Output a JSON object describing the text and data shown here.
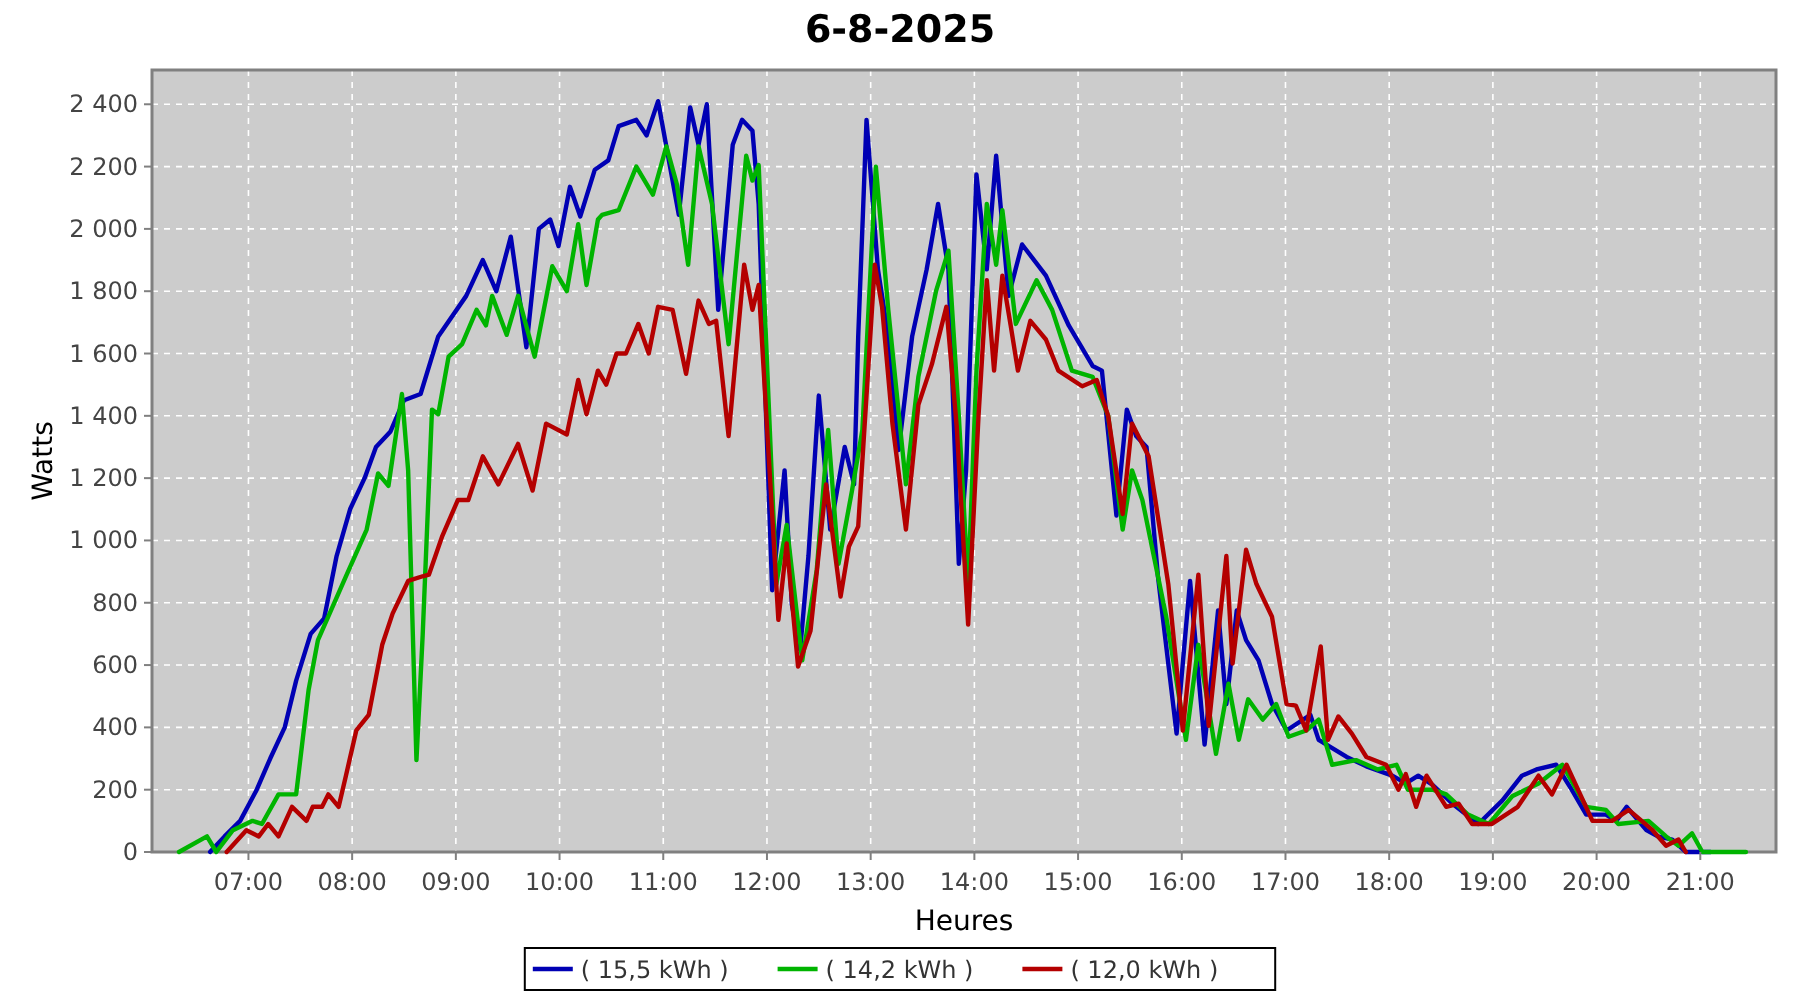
{
  "chart_data": {
    "type": "line",
    "title": "6-8-2025",
    "xlabel": "Heures",
    "ylabel": "Watts",
    "xlim": [
      6.07,
      21.73
    ],
    "xticks": [
      {
        "value": 7,
        "label": "07:00"
      },
      {
        "value": 8,
        "label": "08:00"
      },
      {
        "value": 9,
        "label": "09:00"
      },
      {
        "value": 10,
        "label": "10:00"
      },
      {
        "value": 11,
        "label": "11:00"
      },
      {
        "value": 12,
        "label": "12:00"
      },
      {
        "value": 13,
        "label": "13:00"
      },
      {
        "value": 14,
        "label": "14:00"
      },
      {
        "value": 15,
        "label": "15:00"
      },
      {
        "value": 16,
        "label": "16:00"
      },
      {
        "value": 17,
        "label": "17:00"
      },
      {
        "value": 18,
        "label": "18:00"
      },
      {
        "value": 19,
        "label": "19:00"
      },
      {
        "value": 20,
        "label": "20:00"
      },
      {
        "value": 21,
        "label": "21:00"
      }
    ],
    "ylim": [
      0,
      2510
    ],
    "yticks": [
      0,
      200,
      400,
      600,
      800,
      {
        "value": 1000,
        "label": "1 000"
      },
      {
        "value": 1200,
        "label": "1 200"
      },
      {
        "value": 1400,
        "label": "1 400"
      },
      {
        "value": 1600,
        "label": "1 600"
      },
      {
        "value": 1800,
        "label": "1 800"
      },
      {
        "value": 2000,
        "label": "2 000"
      },
      {
        "value": 2200,
        "label": "2 200"
      },
      {
        "value": 2400,
        "label": "2 400"
      }
    ],
    "grid": true,
    "legend": "bottom",
    "marker": "none",
    "line_style": "solid",
    "series": [
      {
        "name": "( 15,5 kWh )",
        "color": "#0000b4",
        "x": [
          6.63,
          6.77,
          6.92,
          7.08,
          7.21,
          7.35,
          7.46,
          7.6,
          7.73,
          7.85,
          7.98,
          8.12,
          8.23,
          8.37,
          8.5,
          8.66,
          8.83,
          9.1,
          9.26,
          9.39,
          9.53,
          9.68,
          9.8,
          9.91,
          9.99,
          10.1,
          10.2,
          10.34,
          10.47,
          10.57,
          10.74,
          10.84,
          10.95,
          11.15,
          11.26,
          11.34,
          11.42,
          11.53,
          11.67,
          11.76,
          11.86,
          11.92,
          12.05,
          12.17,
          12.24,
          12.32,
          12.4,
          12.5,
          12.61,
          12.75,
          12.84,
          12.88,
          12.96,
          13.07,
          13.17,
          13.27,
          13.4,
          13.54,
          13.65,
          13.75,
          13.85,
          13.92,
          14.02,
          14.12,
          14.21,
          14.33,
          14.46,
          14.69,
          14.91,
          15.14,
          15.23,
          15.37,
          15.47,
          15.56,
          15.66,
          15.77,
          15.95,
          16.08,
          16.22,
          16.35,
          16.43,
          16.53,
          16.62,
          16.74,
          16.87,
          17.01,
          17.24,
          17.32,
          17.59,
          17.78,
          18.03,
          18.16,
          18.28,
          18.42,
          18.61,
          18.86,
          19.09,
          19.28,
          19.42,
          19.61,
          19.76,
          19.9,
          20.09,
          20.19,
          20.29,
          20.48,
          20.59,
          20.73,
          20.86,
          21.1
        ],
        "values": [
          0,
          50,
          100,
          200,
          300,
          400,
          550,
          700,
          750,
          950,
          1100,
          1200,
          1300,
          1350,
          1450,
          1470,
          1655,
          1785,
          1900,
          1800,
          1975,
          1620,
          2000,
          2030,
          1945,
          2135,
          2040,
          2190,
          2220,
          2330,
          2350,
          2300,
          2410,
          2045,
          2390,
          2270,
          2400,
          1740,
          2270,
          2350,
          2315,
          2080,
          840,
          1225,
          795,
          650,
          950,
          1465,
          1035,
          1300,
          1180,
          1655,
          2350,
          1870,
          1655,
          1290,
          1655,
          1870,
          2080,
          1870,
          925,
          1225,
          2175,
          1870,
          2235,
          1785,
          1950,
          1850,
          1690,
          1560,
          1545,
          1080,
          1420,
          1335,
          1300,
          885,
          380,
          870,
          345,
          775,
          475,
          775,
          680,
          615,
          475,
          390,
          440,
          360,
          305,
          275,
          245,
          220,
          245,
          215,
          155,
          90,
          165,
          245,
          265,
          280,
          200,
          120,
          120,
          100,
          145,
          70,
          50,
          40,
          0,
          0
        ]
      },
      {
        "name": "( 14,2 kWh )",
        "color": "#00b400",
        "x": [
          6.33,
          6.6,
          6.69,
          6.85,
          7.04,
          7.13,
          7.29,
          7.46,
          7.58,
          7.67,
          7.94,
          8.14,
          8.25,
          8.35,
          8.48,
          8.54,
          8.62,
          8.68,
          8.77,
          8.83,
          8.93,
          9.06,
          9.2,
          9.29,
          9.35,
          9.49,
          9.6,
          9.76,
          9.93,
          10.07,
          10.18,
          10.26,
          10.37,
          10.41,
          10.57,
          10.74,
          10.9,
          11.03,
          11.13,
          11.24,
          11.34,
          11.47,
          11.63,
          11.8,
          11.86,
          11.92,
          12.09,
          12.19,
          12.34,
          12.48,
          12.59,
          12.69,
          12.82,
          12.92,
          13.05,
          13.17,
          13.34,
          13.46,
          13.63,
          13.75,
          13.85,
          13.94,
          14.02,
          14.12,
          14.21,
          14.27,
          14.4,
          14.6,
          14.75,
          14.94,
          15.14,
          15.29,
          15.43,
          15.52,
          15.62,
          15.85,
          16.04,
          16.16,
          16.33,
          16.45,
          16.55,
          16.64,
          16.78,
          16.91,
          17.03,
          17.2,
          17.32,
          17.45,
          17.68,
          17.89,
          18.07,
          18.18,
          18.42,
          18.55,
          18.76,
          18.96,
          19.19,
          19.44,
          19.67,
          19.9,
          20.09,
          20.21,
          20.5,
          20.67,
          20.79,
          20.92,
          21.02,
          21.44
        ],
        "values": [
          0,
          50,
          0,
          70,
          100,
          90,
          185,
          185,
          520,
          680,
          885,
          1035,
          1215,
          1175,
          1470,
          1225,
          295,
          695,
          1420,
          1405,
          1590,
          1630,
          1740,
          1690,
          1785,
          1660,
          1785,
          1590,
          1880,
          1800,
          2015,
          1820,
          2030,
          2045,
          2060,
          2200,
          2110,
          2265,
          2145,
          1885,
          2265,
          2080,
          1630,
          2235,
          2155,
          2205,
          860,
          1050,
          615,
          905,
          1355,
          925,
          1160,
          1355,
          2200,
          1740,
          1180,
          1525,
          1800,
          1930,
          1400,
          855,
          1545,
          2080,
          1885,
          2060,
          1695,
          1835,
          1740,
          1545,
          1525,
          1400,
          1035,
          1225,
          1130,
          755,
          360,
          665,
          315,
          540,
          360,
          490,
          425,
          475,
          370,
          390,
          425,
          280,
          295,
          265,
          280,
          200,
          200,
          185,
          120,
          90,
          180,
          220,
          280,
          145,
          135,
          90,
          100,
          50,
          20,
          60,
          0,
          0
        ]
      },
      {
        "name": "( 12,0 kWh )",
        "color": "#b40000",
        "x": [
          6.79,
          6.98,
          7.1,
          7.19,
          7.29,
          7.42,
          7.56,
          7.62,
          7.71,
          7.77,
          7.87,
          7.94,
          8.04,
          8.16,
          8.29,
          8.39,
          8.54,
          8.68,
          8.74,
          8.87,
          9.02,
          9.12,
          9.26,
          9.41,
          9.6,
          9.74,
          9.87,
          10.07,
          10.18,
          10.26,
          10.37,
          10.45,
          10.55,
          10.64,
          10.76,
          10.86,
          10.95,
          11.09,
          11.22,
          11.34,
          11.44,
          11.51,
          11.63,
          11.78,
          11.86,
          11.92,
          12.01,
          12.11,
          12.19,
          12.3,
          12.42,
          12.57,
          12.71,
          12.79,
          12.88,
          13.04,
          13.11,
          13.21,
          13.34,
          13.46,
          13.59,
          13.73,
          13.83,
          13.94,
          14.04,
          14.12,
          14.19,
          14.27,
          14.35,
          14.42,
          14.54,
          14.69,
          14.81,
          15.04,
          15.18,
          15.29,
          15.43,
          15.52,
          15.68,
          15.87,
          16.01,
          16.16,
          16.26,
          16.43,
          16.49,
          16.62,
          16.72,
          16.87,
          17.01,
          17.1,
          17.2,
          17.34,
          17.41,
          17.51,
          17.64,
          17.78,
          17.97,
          18.09,
          18.16,
          18.26,
          18.36,
          18.55,
          18.67,
          18.8,
          18.99,
          19.24,
          19.44,
          19.57,
          19.71,
          19.96,
          20.15,
          20.31,
          20.54,
          20.67,
          20.79,
          20.86
        ],
        "values": [
          0,
          70,
          50,
          90,
          50,
          145,
          100,
          145,
          145,
          185,
          145,
          245,
          390,
          440,
          665,
          765,
          870,
          885,
          890,
          1015,
          1130,
          1130,
          1270,
          1180,
          1310,
          1160,
          1375,
          1340,
          1515,
          1405,
          1545,
          1500,
          1600,
          1600,
          1695,
          1600,
          1750,
          1740,
          1535,
          1770,
          1695,
          1705,
          1335,
          1885,
          1740,
          1820,
          1310,
          745,
          990,
          595,
          710,
          1180,
          820,
          980,
          1045,
          1885,
          1750,
          1375,
          1035,
          1435,
          1565,
          1750,
          1365,
          730,
          1400,
          1835,
          1545,
          1850,
          1690,
          1545,
          1705,
          1645,
          1545,
          1495,
          1515,
          1400,
          1085,
          1375,
          1270,
          860,
          390,
          890,
          405,
          950,
          605,
          970,
          860,
          755,
          475,
          470,
          390,
          660,
          360,
          435,
          380,
          305,
          280,
          200,
          250,
          145,
          245,
          145,
          155,
          90,
          90,
          145,
          245,
          185,
          280,
          100,
          100,
          135,
          70,
          20,
          40,
          0
        ]
      }
    ]
  }
}
